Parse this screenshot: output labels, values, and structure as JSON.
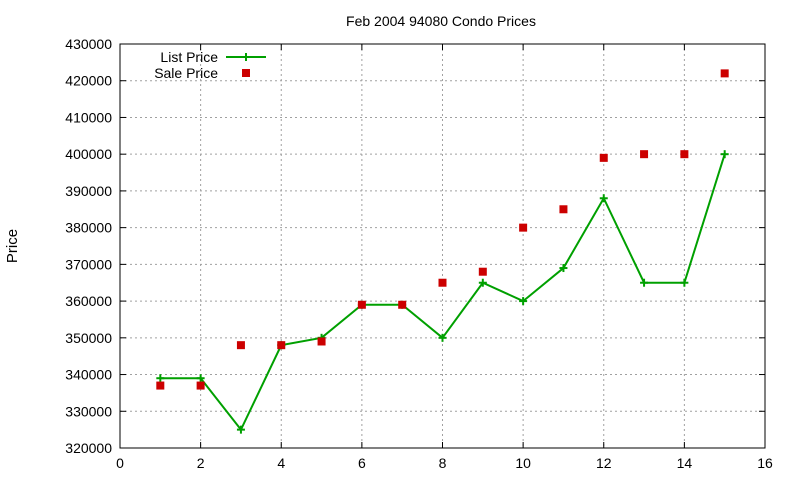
{
  "chart_data": {
    "type": "line",
    "title": "Feb 2004 94080 Condo Prices",
    "xlabel": "",
    "ylabel": "Price",
    "xlim": [
      0,
      16
    ],
    "ylim": [
      320000,
      430000
    ],
    "xticks": [
      0,
      2,
      4,
      6,
      8,
      10,
      12,
      14,
      16
    ],
    "yticks": [
      320000,
      330000,
      340000,
      350000,
      360000,
      370000,
      380000,
      390000,
      400000,
      410000,
      420000,
      430000
    ],
    "grid": true,
    "legend_position": "top-left",
    "series": [
      {
        "name": "List Price",
        "style": "linespoints",
        "marker": "plus",
        "color": "#00a000",
        "x": [
          1,
          2,
          3,
          4,
          5,
          6,
          7,
          8,
          9,
          10,
          11,
          12,
          13,
          14,
          15
        ],
        "y": [
          339000,
          339000,
          325000,
          348000,
          350000,
          359000,
          359000,
          350000,
          365000,
          360000,
          369000,
          388000,
          365000,
          365000,
          400000
        ]
      },
      {
        "name": "Sale Price",
        "style": "points",
        "marker": "square",
        "color": "#cc0000",
        "x": [
          1,
          2,
          3,
          4,
          5,
          6,
          7,
          8,
          9,
          10,
          11,
          12,
          13,
          14,
          15
        ],
        "y": [
          337000,
          337000,
          348000,
          348000,
          349000,
          359000,
          359000,
          365000,
          368000,
          380000,
          385000,
          399000,
          400000,
          400000,
          422000
        ]
      }
    ]
  }
}
